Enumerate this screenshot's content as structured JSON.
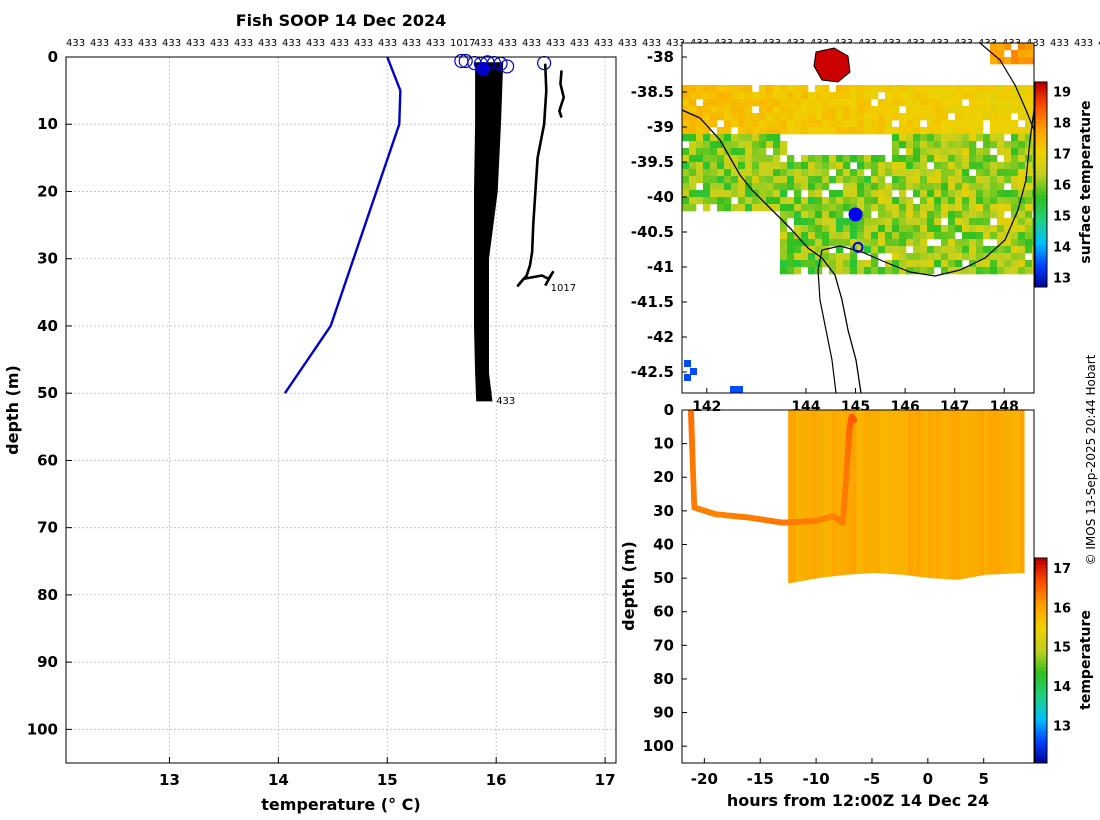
{
  "figure": {
    "title": "Fish SOOP 14 Dec 2024",
    "credit": "© IMOS 13-Sep-2025 20:44 Hobart"
  },
  "chart_data": [
    {
      "type": "line",
      "panel": "profiles",
      "xlabel": "temperature (° C)",
      "ylabel": "depth (m)",
      "xlim": [
        12.05,
        17.1
      ],
      "ylim": [
        105,
        0
      ],
      "xticks": [
        13,
        14,
        15,
        16,
        17
      ],
      "yticks": [
        0,
        10,
        20,
        30,
        40,
        50,
        60,
        70,
        80,
        90,
        100
      ],
      "grid": true,
      "top_labels": [
        "433",
        "433",
        "433",
        "433",
        "433",
        "433",
        "433",
        "433",
        "433",
        "433",
        "433",
        "433",
        "433",
        "433",
        "433",
        "433",
        "1017",
        "433",
        "433",
        "433",
        "433",
        "433",
        "433",
        "433",
        "433",
        "433",
        "433",
        "433",
        "433",
        "433",
        "433",
        "433",
        "433",
        "433",
        "433",
        "433",
        "433",
        "433",
        "433",
        "433",
        "433",
        "433",
        "433",
        "433",
        "433",
        "4"
      ],
      "annotations": [
        {
          "text": "1017",
          "x": 16.5,
          "y": 34.2
        },
        {
          "text": "433",
          "x": 16.0,
          "y": 51
        }
      ],
      "series": [
        {
          "color": "#0000cc",
          "x": [
            15.0,
            15.12,
            15.11,
            14.48,
            14.06
          ],
          "y": [
            0,
            5,
            10,
            40,
            50
          ]
        },
        {
          "color": "#000000",
          "x": [
            16.45,
            16.46,
            16.44,
            16.38,
            16.36,
            16.34,
            16.33,
            16.31,
            16.28,
            16.2,
            16.25,
            16.42,
            16.48,
            16.52,
            16.45
          ],
          "y": [
            1,
            5,
            10,
            15,
            20,
            25,
            29,
            31,
            32.5,
            34,
            33,
            32.5,
            33,
            32,
            34
          ]
        },
        {
          "color": "#000000",
          "x": [
            16.6,
            16.59,
            16.62,
            16.58,
            16.6
          ],
          "y": [
            2,
            4,
            6,
            8,
            9
          ]
        },
        {
          "color": "#000000",
          "x": [
            15.83,
            15.9,
            15.9,
            15.88,
            15.86,
            15.85,
            15.85,
            15.86,
            15.95
          ],
          "y": [
            1,
            3,
            8,
            14,
            20,
            30,
            40,
            47,
            50
          ]
        }
      ],
      "band": {
        "color": "#000000",
        "left": [
          15.82,
          15.82,
          15.81,
          15.81,
          15.81,
          15.82,
          15.83
        ],
        "right": [
          16.05,
          16.03,
          16.0,
          15.92,
          15.92,
          15.92,
          15.95
        ],
        "y": [
          1,
          10,
          20,
          30,
          40,
          47,
          51
        ]
      },
      "markers": [
        {
          "x": 16.44,
          "y": 0.9,
          "color": "#0000cc",
          "filled": false
        },
        {
          "x": 15.68,
          "y": 0.6,
          "color": "#0000cc",
          "filled": false
        },
        {
          "x": 15.72,
          "y": 0.6,
          "color": "#0000cc",
          "filled": false
        },
        {
          "x": 15.8,
          "y": 0.9,
          "color": "#0000cc",
          "filled": false
        },
        {
          "x": 15.86,
          "y": 1.0,
          "color": "#0000cc",
          "filled": false
        },
        {
          "x": 15.92,
          "y": 0.8,
          "color": "#0000cc",
          "filled": false
        },
        {
          "x": 15.98,
          "y": 0.9,
          "color": "#0000cc",
          "filled": false
        },
        {
          "x": 16.04,
          "y": 1.0,
          "color": "#0000cc",
          "filled": false
        },
        {
          "x": 16.1,
          "y": 1.4,
          "color": "#0000cc",
          "filled": false
        },
        {
          "x": 15.88,
          "y": 1.8,
          "color": "#0000cc",
          "filled": true
        }
      ]
    },
    {
      "type": "heatmap",
      "panel": "map",
      "colorbar_label": "surface temperature",
      "colorbar_ticks": [
        13,
        14,
        15,
        16,
        17,
        18,
        19
      ],
      "colorbar_range": [
        12.7,
        19.3
      ],
      "xticks": [
        142,
        144,
        145,
        146,
        147,
        148
      ],
      "yticks": [
        -38,
        -38.5,
        -39,
        -39.5,
        -40,
        -40.5,
        -41,
        -41.5,
        -42,
        -42.5
      ],
      "xlim": [
        141.5,
        148.6
      ],
      "ylim": [
        -42.8,
        -37.8
      ],
      "colormap": [
        "#00008f",
        "#0040ff",
        "#00c0ff",
        "#20d080",
        "#30c020",
        "#c0d020",
        "#f0d000",
        "#ffa000",
        "#ff5000",
        "#c00000"
      ],
      "markers": [
        {
          "lon": 145.0,
          "lat": -40.25,
          "color": "#0000ee",
          "filled": true
        },
        {
          "lon": 145.05,
          "lat": -40.72,
          "color": "#0000ee",
          "filled": false
        }
      ]
    },
    {
      "type": "scatter",
      "panel": "time_depth",
      "xlabel": "hours from 12:00Z 14 Dec 24",
      "ylabel": "depth (m)",
      "xlim": [
        -22,
        9.5
      ],
      "ylim": [
        105,
        0
      ],
      "xticks": [
        -20,
        -15,
        -10,
        -5,
        0,
        5
      ],
      "yticks": [
        0,
        10,
        20,
        30,
        40,
        50,
        60,
        70,
        80,
        90,
        100
      ],
      "colorbar_label": "temperature",
      "colorbar_ticks": [
        13,
        14,
        15,
        16,
        17
      ],
      "colorbar_range": [
        12.05,
        17.25
      ],
      "colormap": [
        "#00008f",
        "#0040ff",
        "#00c0ff",
        "#20d080",
        "#30c020",
        "#c0d020",
        "#f0d000",
        "#ffa000",
        "#ff5000",
        "#c00000"
      ],
      "track": {
        "t": [
          -21.2,
          -21.1,
          -20.9,
          -19,
          -16,
          -13,
          -10,
          -8.5,
          -7.6,
          -7.2,
          -7.0,
          -6.8,
          -6.6
        ],
        "depth": [
          0,
          10,
          29,
          31,
          32,
          33.5,
          33,
          31.5,
          33.5,
          15,
          5,
          2,
          3
        ],
        "temp": [
          16.45,
          16.4,
          16.35,
          16.3,
          16.35,
          16.4,
          16.35,
          16.3,
          16.35,
          16.4,
          16.5,
          16.6,
          16.6
        ]
      },
      "block": {
        "t_start": -12.5,
        "t_end": 8.3,
        "depth_top": 0,
        "bottom_t": [
          -12.5,
          -10,
          -7.5,
          -5,
          -2.5,
          0,
          2.5,
          5,
          8.3
        ],
        "bottom_depth": [
          51.5,
          50,
          49,
          48.5,
          49,
          50,
          50.5,
          49,
          48.5
        ],
        "temp_top": 15.95,
        "temp_bottom": 15.85
      }
    }
  ]
}
